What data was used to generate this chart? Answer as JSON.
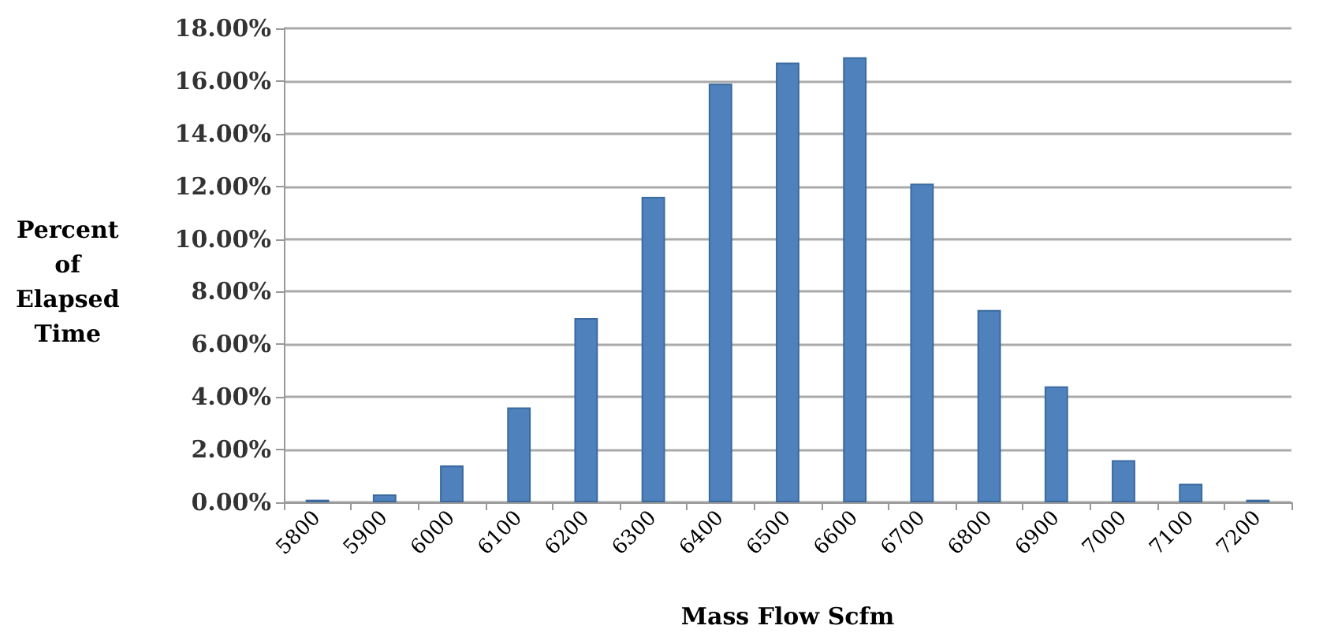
{
  "chart_data": {
    "type": "bar",
    "xlabel": "Mass Flow Scfm",
    "ylabel": "Percent\nof\nElapsed\nTime",
    "categories": [
      "5800",
      "5900",
      "6000",
      "6100",
      "6200",
      "6300",
      "6400",
      "6500",
      "6600",
      "6700",
      "6800",
      "6900",
      "7000",
      "7100",
      "7200"
    ],
    "values": [
      0.1,
      0.3,
      1.4,
      3.6,
      7.0,
      11.6,
      15.9,
      16.7,
      16.9,
      12.1,
      7.3,
      4.4,
      1.6,
      0.7,
      0.1
    ],
    "color": "#4f81bd",
    "ylim": [
      0,
      18
    ],
    "yticks": [
      {
        "value": 0,
        "label": "0.00%"
      },
      {
        "value": 2,
        "label": "2.00%"
      },
      {
        "value": 4,
        "label": "4.00%"
      },
      {
        "value": 6,
        "label": "6.00%"
      },
      {
        "value": 8,
        "label": "8.00%"
      },
      {
        "value": 10,
        "label": "10.00%"
      },
      {
        "value": 12,
        "label": "12.00%"
      },
      {
        "value": 14,
        "label": "14.00%"
      },
      {
        "value": 16,
        "label": "16.00%"
      },
      {
        "value": 18,
        "label": "18.00%"
      }
    ],
    "grid": "y"
  }
}
